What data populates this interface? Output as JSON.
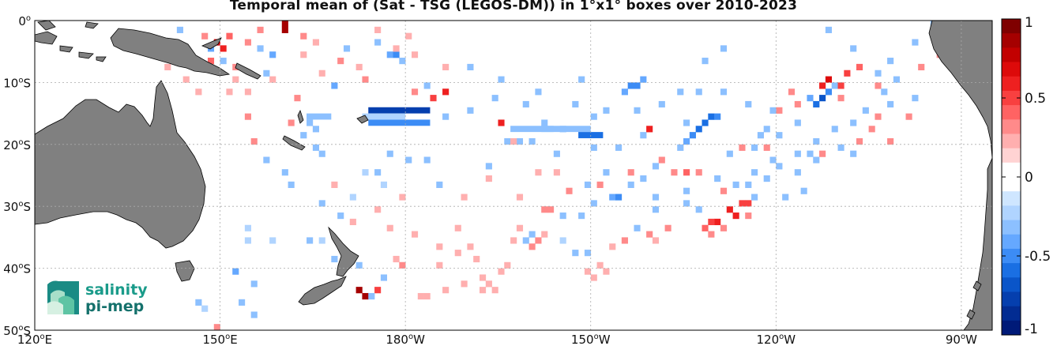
{
  "title": "Temporal mean of (Sat - TSG (LEGOS-DM)) in 1°x1° boxes over 2010-2023",
  "map": {
    "lon_range": [
      120,
      275
    ],
    "lat_range": [
      -50,
      0
    ],
    "grid": true,
    "lat_ticks": [
      {
        "lat": 0,
        "label": "0°"
      },
      {
        "lat": -10,
        "label": "10°S"
      },
      {
        "lat": -20,
        "label": "20°S"
      },
      {
        "lat": -30,
        "label": "30°S"
      },
      {
        "lat": -40,
        "label": "40°S"
      },
      {
        "lat": -50,
        "label": "50°S"
      }
    ],
    "lon_ticks": [
      {
        "lon": 120,
        "label": "120°E"
      },
      {
        "lon": 150,
        "label": "150°E"
      },
      {
        "lon": 180,
        "label": "180°W"
      },
      {
        "lon": 210,
        "label": "150°W"
      },
      {
        "lon": 240,
        "label": "120°W"
      },
      {
        "lon": 270,
        "label": "90°W"
      }
    ],
    "land_color": "#808080",
    "ocean_color": "#ffffff"
  },
  "colorbar": {
    "range": [
      -1,
      1
    ],
    "ticks": [
      {
        "value": 1,
        "label": "1"
      },
      {
        "value": 0.5,
        "label": "0.5"
      },
      {
        "value": 0,
        "label": "0"
      },
      {
        "value": -0.5,
        "label": "-0.5"
      },
      {
        "value": -1,
        "label": "-1"
      }
    ],
    "colors": [
      "#7f0000",
      "#a50000",
      "#c20000",
      "#dd0a0a",
      "#ee2020",
      "#f84040",
      "#ff6363",
      "#ff8a8a",
      "#ffafaf",
      "#ffd3d3",
      "#ffffff",
      "#ffffff",
      "#cfe6ff",
      "#b0d4ff",
      "#8cc0ff",
      "#65a8ff",
      "#3c8cf5",
      "#1a6fe3",
      "#0a55c9",
      "#053fae",
      "#022c92",
      "#001a78"
    ]
  },
  "logo": {
    "line1": "salinity",
    "line2": "pi-mep"
  },
  "chart_data": {
    "type": "heatmap",
    "title": "Temporal mean of (Sat - TSG (LEGOS-DM)) in 1°x1° boxes over 2010-2023",
    "units": "cell value = mean (Sat - TSG)",
    "cell_size_deg": 1,
    "clim": [
      -1,
      1
    ],
    "cells": [
      [
        160,
        0,
        0.9
      ],
      [
        160,
        -1,
        0.9
      ],
      [
        149,
        -3,
        0.7
      ],
      [
        150,
        -4,
        0.6
      ],
      [
        151,
        -2,
        0.4
      ],
      [
        154,
        -3,
        0.3
      ],
      [
        148,
        -6,
        0.4
      ],
      [
        147,
        -2,
        0.3
      ],
      [
        152,
        -7,
        0.3
      ],
      [
        156,
        -1,
        0.3
      ],
      [
        163,
        -2,
        0.3
      ],
      [
        165,
        -3,
        0.2
      ],
      [
        169,
        -6,
        0.3
      ],
      [
        175,
        -1,
        0.2
      ],
      [
        181,
        -11,
        0.3
      ],
      [
        184,
        -12,
        0.5
      ],
      [
        186,
        -11,
        0.6
      ],
      [
        173,
        -9,
        0.3
      ],
      [
        168,
        -10,
        -0.4
      ],
      [
        156,
        -4,
        -0.3
      ],
      [
        158,
        -5,
        -0.4
      ],
      [
        157,
        -8,
        -0.3
      ],
      [
        150,
        -6,
        -0.3
      ],
      [
        148,
        -4,
        -0.4
      ],
      [
        143,
        -1,
        -0.3
      ],
      [
        136,
        -2,
        -0.3
      ],
      [
        139,
        -5,
        -0.2
      ],
      [
        177,
        -5,
        -0.4
      ],
      [
        178,
        -5,
        -0.5
      ],
      [
        179,
        -6,
        -0.3
      ],
      [
        170,
        -4,
        -0.3
      ],
      [
        175,
        -3,
        -0.3
      ],
      [
        183,
        -10,
        -0.3
      ],
      [
        190,
        -7,
        -0.3
      ],
      [
        195,
        -9,
        -0.3
      ],
      [
        201,
        -11,
        -0.3
      ],
      [
        208,
        -9,
        -0.3
      ],
      [
        215,
        -11,
        -0.4
      ],
      [
        216,
        -10,
        -0.5
      ],
      [
        217,
        -10,
        -0.5
      ],
      [
        218,
        -9,
        -0.4
      ],
      [
        210,
        -15,
        -0.3
      ],
      [
        225,
        -16,
        -0.3
      ],
      [
        231,
        -4,
        -0.3
      ],
      [
        228,
        -6,
        -0.3
      ],
      [
        248,
        -1,
        -0.3
      ],
      [
        252,
        -4,
        -0.3
      ],
      [
        258,
        -6,
        -0.3
      ],
      [
        265,
        0,
        -0.3
      ],
      [
        267,
        -2,
        -0.3
      ],
      [
        262,
        -3,
        -0.3
      ],
      [
        245,
        -12,
        -0.4
      ],
      [
        246,
        -13,
        -0.6
      ],
      [
        247,
        -12,
        -0.7
      ],
      [
        248,
        -11,
        -0.5
      ],
      [
        249,
        -10,
        -0.3
      ],
      [
        247,
        -10,
        0.6
      ],
      [
        248,
        -9,
        0.7
      ],
      [
        250,
        -10,
        0.5
      ],
      [
        251,
        -8,
        0.5
      ],
      [
        253,
        -7,
        0.4
      ],
      [
        250,
        -12,
        0.3
      ],
      [
        243,
        -13,
        0.3
      ],
      [
        242,
        -11,
        0.3
      ],
      [
        240,
        -14,
        0.3
      ],
      [
        256,
        -10,
        0.3
      ],
      [
        256,
        -15,
        0.3
      ],
      [
        255,
        -17,
        0.3
      ],
      [
        270,
        0,
        0.9
      ],
      [
        268,
        -3,
        0.5
      ],
      [
        266,
        -5,
        0.3
      ],
      [
        263,
        -7,
        0.3
      ],
      [
        226,
        -18,
        -0.5
      ],
      [
        227,
        -17,
        -0.6
      ],
      [
        228,
        -16,
        -0.6
      ],
      [
        229,
        -15,
        -0.6
      ],
      [
        230,
        -15,
        -0.5
      ],
      [
        225,
        -19,
        -0.4
      ],
      [
        224,
        -20,
        -0.3
      ],
      [
        220,
        -23,
        -0.3
      ],
      [
        218,
        -25,
        -0.3
      ],
      [
        216,
        -26,
        -0.3
      ],
      [
        213,
        -28,
        -0.4
      ],
      [
        214,
        -28,
        -0.5
      ],
      [
        210,
        -29,
        -0.3
      ],
      [
        208,
        -31,
        -0.3
      ],
      [
        205,
        -31,
        -0.3
      ],
      [
        200,
        -34,
        -0.3
      ],
      [
        199,
        -35,
        -0.3
      ],
      [
        205,
        -35,
        -0.2
      ],
      [
        207,
        -37,
        -0.3
      ],
      [
        209,
        -37,
        -0.3
      ],
      [
        217,
        -33,
        -0.3
      ],
      [
        220,
        -30,
        -0.3
      ],
      [
        225,
        -29,
        -0.3
      ],
      [
        230,
        -25,
        -0.3
      ],
      [
        233,
        -26,
        -0.3
      ],
      [
        235,
        -26,
        -0.3
      ],
      [
        238,
        -25,
        -0.3
      ],
      [
        240,
        -23,
        -0.3
      ],
      [
        243,
        -21,
        -0.3
      ],
      [
        245,
        -21,
        -0.3
      ],
      [
        250,
        -20,
        -0.3
      ],
      [
        252,
        -21,
        -0.3
      ],
      [
        223,
        -24,
        0.3
      ],
      [
        225,
        -24,
        0.4
      ],
      [
        227,
        -24,
        0.3
      ],
      [
        231,
        -27,
        0.3
      ],
      [
        234,
        -29,
        0.5
      ],
      [
        235,
        -29,
        0.5
      ],
      [
        232,
        -30,
        0.6
      ],
      [
        233,
        -31,
        0.6
      ],
      [
        230,
        -32,
        0.6
      ],
      [
        229,
        -32,
        0.5
      ],
      [
        235,
        -31,
        0.3
      ],
      [
        228,
        -33,
        0.4
      ],
      [
        231,
        -33,
        0.3
      ],
      [
        229,
        -34,
        0.3
      ],
      [
        222,
        -33,
        0.3
      ],
      [
        219,
        -34,
        0.3
      ],
      [
        215,
        -35,
        0.3
      ],
      [
        211,
        -39,
        0.2
      ],
      [
        212,
        -40,
        0.2
      ],
      [
        210,
        -41,
        0.2
      ],
      [
        209,
        -40,
        0.2
      ],
      [
        200,
        -36,
        0.3
      ],
      [
        201,
        -35,
        0.3
      ],
      [
        196,
        -39,
        0.2
      ],
      [
        195,
        -40,
        0.2
      ],
      [
        192,
        -41,
        0.2
      ],
      [
        193,
        -42,
        0.2
      ],
      [
        192,
        -43,
        0.2
      ],
      [
        194,
        -43,
        0.2
      ],
      [
        189,
        -42,
        0.2
      ],
      [
        186,
        -43,
        0.2
      ],
      [
        182,
        -44,
        0.2
      ],
      [
        183,
        -44,
        0.2
      ],
      [
        185,
        -39,
        0.2
      ],
      [
        185,
        -36,
        0.2
      ],
      [
        188,
        -37,
        0.2
      ],
      [
        191,
        -38,
        0.2
      ],
      [
        197,
        -35,
        0.2
      ],
      [
        198,
        -33,
        0.2
      ],
      [
        202,
        -30,
        0.3
      ],
      [
        203,
        -30,
        0.3
      ],
      [
        188,
        -33,
        0.2
      ],
      [
        181,
        -34,
        0.2
      ],
      [
        177,
        -33,
        0.2
      ],
      [
        178,
        -38,
        0.2
      ],
      [
        179,
        -39,
        0.3
      ],
      [
        175,
        -43,
        0.5
      ],
      [
        172,
        -43,
        0.9
      ],
      [
        173,
        -44,
        0.9
      ],
      [
        168,
        -38,
        -0.3
      ],
      [
        170,
        -37,
        -0.3
      ],
      [
        172,
        -39,
        -0.3
      ],
      [
        174,
        -44,
        -0.3
      ],
      [
        176,
        -41,
        -0.3
      ],
      [
        152,
        -40,
        -0.4
      ],
      [
        155,
        -42,
        -0.3
      ],
      [
        146,
        -45,
        -0.3
      ],
      [
        147,
        -46,
        -0.2
      ],
      [
        149,
        -49,
        0.3
      ],
      [
        150,
        -50,
        0.3
      ],
      [
        153,
        -45,
        -0.3
      ],
      [
        155,
        -47,
        -0.3
      ],
      [
        164,
        -35,
        -0.3
      ],
      [
        166,
        -29,
        -0.3
      ],
      [
        169,
        -31,
        -0.3
      ],
      [
        161,
        -26,
        -0.3
      ],
      [
        160,
        -24,
        -0.3
      ],
      [
        157,
        -22,
        -0.3
      ],
      [
        163,
        -18,
        -0.3
      ],
      [
        165,
        -17,
        -0.3
      ],
      [
        164,
        -16,
        -0.3
      ],
      [
        165,
        -20,
        -0.3
      ],
      [
        166,
        -21,
        -0.3
      ],
      [
        175,
        -24,
        -0.3
      ],
      [
        177,
        -21,
        -0.3
      ],
      [
        180,
        -22,
        -0.3
      ],
      [
        183,
        -22,
        -0.3
      ],
      [
        185,
        -26,
        -0.3
      ],
      [
        193,
        -23,
        -0.3
      ],
      [
        196,
        -19,
        -0.3
      ],
      [
        198,
        -19,
        -0.3
      ],
      [
        200,
        -19,
        -0.3
      ],
      [
        204,
        -21,
        -0.3
      ],
      [
        205,
        -17,
        -0.3
      ],
      [
        210,
        -20,
        -0.3
      ],
      [
        214,
        -20,
        -0.3
      ],
      [
        218,
        -18,
        -0.3
      ],
      [
        232,
        -21,
        -0.3
      ],
      [
        236,
        -20,
        -0.3
      ],
      [
        237,
        -18,
        -0.3
      ],
      [
        238,
        -17,
        -0.3
      ],
      [
        240,
        -18,
        -0.3
      ],
      [
        243,
        -24,
        -0.3
      ],
      [
        246,
        -22,
        -0.3
      ],
      [
        243,
        -16,
        -0.3
      ],
      [
        239,
        -14,
        -0.3
      ],
      [
        235,
        -13,
        -0.3
      ],
      [
        231,
        -11,
        -0.3
      ],
      [
        227,
        -11,
        -0.3
      ],
      [
        224,
        -11,
        -0.3
      ],
      [
        221,
        -13,
        -0.3
      ],
      [
        217,
        -14,
        -0.3
      ],
      [
        212,
        -14,
        -0.3
      ],
      [
        207,
        -13,
        -0.3
      ],
      [
        202,
        -16,
        -0.3
      ],
      [
        199,
        -13,
        -0.3
      ],
      [
        194,
        -12,
        -0.3
      ],
      [
        190,
        -14,
        -0.3
      ],
      [
        186,
        -15,
        -0.3
      ],
      [
        154,
        -33,
        -0.2
      ],
      [
        154,
        -35,
        -0.2
      ],
      [
        158,
        -35,
        -0.2
      ],
      [
        166,
        -35,
        -0.2
      ],
      [
        171,
        -28,
        -0.2
      ],
      [
        173,
        -24,
        -0.2
      ],
      [
        176,
        -26,
        -0.2
      ],
      [
        209,
        -26,
        -0.3
      ],
      [
        212,
        -24,
        -0.3
      ],
      [
        220,
        -28,
        -0.3
      ],
      [
        225,
        -27,
        -0.3
      ],
      [
        227,
        -30,
        -0.3
      ],
      [
        236,
        -28,
        -0.3
      ],
      [
        241,
        -28,
        -0.3
      ],
      [
        244,
        -27,
        -0.3
      ],
      [
        236,
        -24,
        -0.3
      ],
      [
        239,
        -22,
        -0.3
      ],
      [
        246,
        -19,
        -0.3
      ],
      [
        249,
        -17,
        -0.3
      ],
      [
        252,
        -16,
        -0.3
      ],
      [
        254,
        -14,
        -0.3
      ],
      [
        258,
        -13,
        -0.3
      ],
      [
        257,
        -11,
        -0.3
      ],
      [
        256,
        -8,
        -0.3
      ],
      [
        259,
        -9,
        -0.3
      ],
      [
        262,
        -12,
        -0.3
      ],
      [
        261,
        -15,
        0.3
      ],
      [
        258,
        -19,
        0.3
      ],
      [
        253,
        -19,
        0.3
      ],
      [
        247,
        -21,
        0.3
      ],
      [
        238,
        -20,
        0.3
      ],
      [
        234,
        -20,
        0.3
      ],
      [
        220,
        -35,
        0.2
      ],
      [
        213,
        -36,
        0.2
      ],
      [
        206,
        -27,
        0.3
      ],
      [
        211,
        -26,
        0.3
      ],
      [
        216,
        -24,
        0.3
      ],
      [
        221,
        -22,
        0.3
      ],
      [
        219,
        -17,
        0.6
      ],
      [
        195,
        -16,
        0.6
      ],
      [
        197,
        -19,
        0.2
      ],
      [
        193,
        -25,
        0.2
      ],
      [
        189,
        -28,
        0.2
      ],
      [
        198,
        -28,
        0.2
      ],
      [
        201,
        -24,
        0.2
      ],
      [
        204,
        -24,
        0.2
      ],
      [
        202,
        -34,
        0.2
      ],
      [
        190,
        -36,
        0.2
      ],
      [
        179,
        -28,
        0.2
      ],
      [
        175,
        -30,
        0.2
      ],
      [
        171,
        -32,
        0.2
      ],
      [
        168,
        -26,
        0.2
      ],
      [
        161,
        -16,
        0.3
      ],
      [
        162,
        -12,
        0.3
      ],
      [
        154,
        -15,
        0.3
      ],
      [
        155,
        -19,
        0.3
      ],
      [
        151,
        -11,
        0.2
      ],
      [
        141,
        -7,
        0.2
      ],
      [
        144,
        -9,
        0.2
      ],
      [
        146,
        -11,
        0.2
      ],
      [
        152,
        -9,
        0.2
      ],
      [
        154,
        -11,
        0.2
      ],
      [
        158,
        -9,
        0.2
      ],
      [
        163,
        -5,
        0.2
      ],
      [
        166,
        -8,
        0.2
      ],
      [
        172,
        -7,
        0.2
      ],
      [
        178,
        -4,
        0.2
      ],
      [
        180,
        -2,
        0.2
      ],
      [
        181,
        -5,
        0.2
      ],
      [
        186,
        -7,
        0.2
      ]
    ],
    "bands": [
      {
        "lon": [
          174,
          184
        ],
        "lat": [
          -15,
          -14
        ],
        "value": -0.8
      },
      {
        "lon": [
          174,
          184
        ],
        "lat": [
          -17,
          -16
        ],
        "value": -0.5
      },
      {
        "lon": [
          173,
          180
        ],
        "lat": [
          -16,
          -15
        ],
        "value": -0.2
      },
      {
        "lon": [
          202,
          210
        ],
        "lat": [
          -18,
          -17
        ],
        "value": -0.3
      },
      {
        "lon": [
          208,
          212
        ],
        "lat": [
          -19,
          -18
        ],
        "value": -0.6
      },
      {
        "lon": [
          197,
          204
        ],
        "lat": [
          -18,
          -17
        ],
        "value": -0.3
      },
      {
        "lon": [
          164,
          168
        ],
        "lat": [
          -16,
          -15
        ],
        "value": -0.3
      }
    ]
  }
}
